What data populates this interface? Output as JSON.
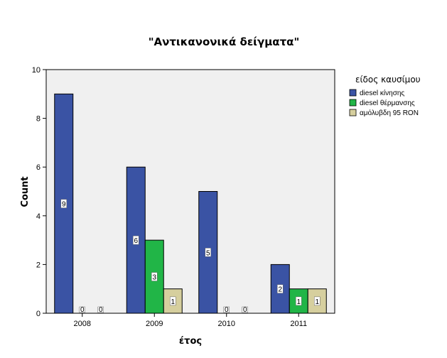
{
  "chart_data": {
    "type": "bar",
    "title": "\"Αντικανονικά δείγματα\"",
    "xlabel": "έτος",
    "ylabel": "Count",
    "categories": [
      "2008",
      "2009",
      "2010",
      "2011"
    ],
    "ylim": [
      0,
      10
    ],
    "yticks": [
      0,
      2,
      4,
      6,
      8,
      10
    ],
    "legend_title": "είδος καυσίμου",
    "legend_position": "right",
    "grid": false,
    "series": [
      {
        "name": "diesel κίνησης",
        "color": "#3a53a4",
        "values": [
          9,
          6,
          5,
          2
        ],
        "labels": [
          "9",
          "6",
          "5",
          "2"
        ]
      },
      {
        "name": "diesel θέρμανσης",
        "color": "#21b547",
        "values": [
          0,
          3,
          0,
          1
        ],
        "labels": [
          "0",
          "3",
          "0",
          "1"
        ]
      },
      {
        "name": "αμόλυβδη 95 RON",
        "color": "#d6cf9e",
        "values": [
          0,
          1,
          0,
          1
        ],
        "labels": [
          "0",
          "1",
          "0",
          "1"
        ]
      }
    ],
    "plot_background": "#f0f0f0"
  }
}
